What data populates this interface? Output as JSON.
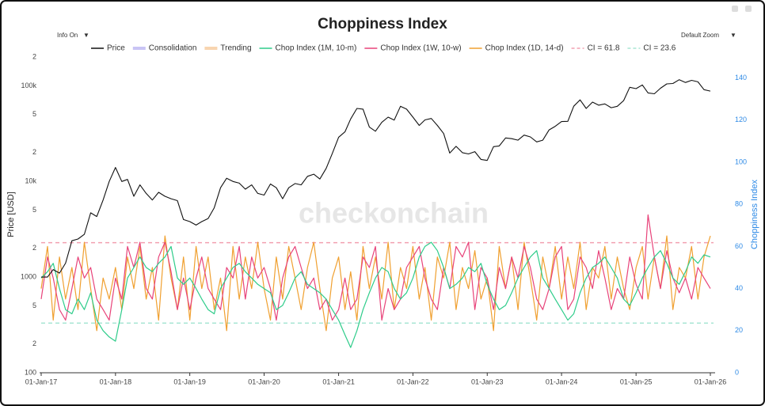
{
  "chart_data": {
    "type": "line",
    "title": "Choppiness Index",
    "controls": {
      "info": "Info On",
      "zoom": "Default Zoom"
    },
    "watermark": "checkonchain",
    "y_label": "Price [USD]",
    "y2_label": "Choppiness Index",
    "log_y": true,
    "ylim": [
      100,
      200000
    ],
    "yticks": [
      100,
      {
        "value": 200,
        "label": "2"
      },
      {
        "value": 500,
        "label": "5"
      },
      1000,
      {
        "value": 2000,
        "label": "2"
      },
      {
        "value": 5000,
        "label": "5"
      },
      {
        "value": 10000,
        "label": "10k"
      },
      {
        "value": 20000,
        "label": "2"
      },
      {
        "value": 50000,
        "label": "5"
      },
      {
        "value": 100000,
        "label": "100k"
      },
      {
        "value": 200000,
        "label": "2"
      }
    ],
    "y2lim": [
      0,
      150
    ],
    "y2ticks": [
      0,
      20,
      40,
      60,
      80,
      100,
      120,
      140
    ],
    "xlim": [
      "2017-01-01",
      "2026-01-01"
    ],
    "xticks": [
      {
        "value": "2017-01-01",
        "label": "01-Jan-17"
      },
      {
        "value": "2018-01-01",
        "label": "01-Jan-18"
      },
      {
        "value": "2019-01-01",
        "label": "01-Jan-19"
      },
      {
        "value": "2020-01-01",
        "label": "01-Jan-20"
      },
      {
        "value": "2021-01-01",
        "label": "01-Jan-21"
      },
      {
        "value": "2022-01-01",
        "label": "01-Jan-22"
      },
      {
        "value": "2023-01-01",
        "label": "01-Jan-23"
      },
      {
        "value": "2024-01-01",
        "label": "01-Jan-24"
      },
      {
        "value": "2025-01-01",
        "label": "01-Jan-25"
      },
      {
        "value": "2026-01-01",
        "label": "01-Jan-26"
      }
    ],
    "x": [
      "2017-01-01",
      "2017-02-01",
      "2017-03-01",
      "2017-04-01",
      "2017-05-01",
      "2017-06-01",
      "2017-07-01",
      "2017-08-01",
      "2017-09-01",
      "2017-10-01",
      "2017-11-01",
      "2017-12-01",
      "2018-01-01",
      "2018-02-01",
      "2018-03-01",
      "2018-04-01",
      "2018-05-01",
      "2018-06-01",
      "2018-07-01",
      "2018-08-01",
      "2018-09-01",
      "2018-10-01",
      "2018-11-01",
      "2018-12-01",
      "2019-01-01",
      "2019-02-01",
      "2019-03-01",
      "2019-04-01",
      "2019-05-01",
      "2019-06-01",
      "2019-07-01",
      "2019-08-01",
      "2019-09-01",
      "2019-10-01",
      "2019-11-01",
      "2019-12-01",
      "2020-01-01",
      "2020-02-01",
      "2020-03-01",
      "2020-04-01",
      "2020-05-01",
      "2020-06-01",
      "2020-07-01",
      "2020-08-01",
      "2020-09-01",
      "2020-10-01",
      "2020-11-01",
      "2020-12-01",
      "2021-01-01",
      "2021-02-01",
      "2021-03-01",
      "2021-04-01",
      "2021-05-01",
      "2021-06-01",
      "2021-07-01",
      "2021-08-01",
      "2021-09-01",
      "2021-10-01",
      "2021-11-01",
      "2021-12-01",
      "2022-01-01",
      "2022-02-01",
      "2022-03-01",
      "2022-04-01",
      "2022-05-01",
      "2022-06-01",
      "2022-07-01",
      "2022-08-01",
      "2022-09-01",
      "2022-10-01",
      "2022-11-01",
      "2022-12-01",
      "2023-01-01",
      "2023-02-01",
      "2023-03-01",
      "2023-04-01",
      "2023-05-01",
      "2023-06-01",
      "2023-07-01",
      "2023-08-01",
      "2023-09-01",
      "2023-10-01",
      "2023-11-01",
      "2023-12-01",
      "2024-01-01",
      "2024-02-01",
      "2024-03-01",
      "2024-04-01",
      "2024-05-01",
      "2024-06-01",
      "2024-07-01",
      "2024-08-01",
      "2024-09-01",
      "2024-10-01",
      "2024-11-01",
      "2024-12-01",
      "2025-01-01",
      "2025-02-01",
      "2025-03-01",
      "2025-04-01",
      "2025-05-01",
      "2025-06-01",
      "2025-07-01",
      "2025-08-01",
      "2025-09-01",
      "2025-10-01",
      "2025-11-01",
      "2025-12-01",
      "2026-01-01"
    ],
    "series": [
      {
        "name": "Price",
        "color": "#111111",
        "axis": "y",
        "values": [
          1000,
          1000,
          1200,
          1100,
          1400,
          2400,
          2500,
          2800,
          4700,
          4300,
          6400,
          10000,
          14000,
          10000,
          10500,
          7000,
          9200,
          7500,
          6400,
          7700,
          7000,
          6600,
          6300,
          4000,
          3800,
          3500,
          3800,
          4100,
          5300,
          8600,
          10800,
          10000,
          9600,
          8300,
          9200,
          7500,
          7200,
          9400,
          8600,
          6600,
          8600,
          9500,
          9200,
          11300,
          11900,
          10600,
          13700,
          19600,
          29000,
          33000,
          45000,
          58000,
          57000,
          37000,
          33500,
          41500,
          47000,
          43800,
          61000,
          57000,
          47000,
          38500,
          44000,
          45500,
          38500,
          31700,
          19800,
          23300,
          20000,
          19400,
          20500,
          17000,
          16600,
          23100,
          23500,
          28500,
          28000,
          27000,
          30500,
          29200,
          25900,
          27000,
          34600,
          37700,
          42300,
          42500,
          61100,
          71200,
          58000,
          67500,
          62700,
          64600,
          59000,
          61000,
          70000,
          96400,
          93400,
          102000,
          84300,
          82500,
          94200,
          104600,
          105700,
          115800,
          108200,
          114000,
          110000,
          91000,
          88000
        ]
      },
      {
        "name": "Chop Index (1M, 10-m)",
        "color": "#2ecc8a",
        "axis": "y2",
        "values": [
          45,
          48,
          52,
          40,
          30,
          28,
          35,
          30,
          38,
          25,
          20,
          17,
          15,
          30,
          45,
          50,
          55,
          50,
          48,
          52,
          55,
          60,
          45,
          42,
          45,
          40,
          35,
          30,
          28,
          40,
          45,
          50,
          52,
          48,
          45,
          42,
          40,
          38,
          30,
          32,
          38,
          45,
          48,
          42,
          40,
          38,
          35,
          30,
          25,
          18,
          12,
          20,
          30,
          38,
          45,
          50,
          48,
          40,
          35,
          38,
          45,
          55,
          60,
          62,
          58,
          50,
          40,
          42,
          45,
          50,
          48,
          52,
          42,
          35,
          30,
          32,
          38,
          45,
          50,
          55,
          58,
          45,
          40,
          35,
          30,
          25,
          28,
          38,
          45,
          50,
          52,
          55,
          50,
          45,
          35,
          32,
          38,
          45,
          50,
          55,
          58,
          52,
          45,
          42,
          48,
          55,
          52,
          56,
          55
        ]
      },
      {
        "name": "Chop Index (1W, 10-w)",
        "color": "#e8437a",
        "axis": "y2",
        "values": [
          35,
          55,
          45,
          30,
          25,
          40,
          55,
          45,
          50,
          35,
          30,
          25,
          45,
          35,
          60,
          50,
          62,
          40,
          35,
          55,
          62,
          48,
          30,
          45,
          30,
          45,
          55,
          40,
          35,
          30,
          50,
          45,
          60,
          35,
          55,
          45,
          50,
          40,
          25,
          45,
          55,
          60,
          50,
          40,
          45,
          30,
          35,
          25,
          30,
          45,
          30,
          35,
          55,
          50,
          60,
          25,
          40,
          30,
          35,
          50,
          55,
          60,
          45,
          35,
          30,
          50,
          40,
          60,
          55,
          62,
          30,
          50,
          45,
          30,
          50,
          40,
          55,
          45,
          60,
          50,
          35,
          30,
          40,
          55,
          60,
          30,
          35,
          55,
          50,
          40,
          58,
          45,
          30,
          40,
          35,
          55,
          42,
          35,
          75,
          55,
          40,
          58,
          45,
          38,
          45,
          35,
          50,
          45,
          40
        ]
      },
      {
        "name": "Chop Index (1D, 14-d)",
        "color": "#f0a030",
        "axis": "y2",
        "values": [
          40,
          60,
          25,
          55,
          35,
          50,
          30,
          62,
          40,
          20,
          45,
          35,
          50,
          30,
          55,
          40,
          60,
          35,
          50,
          25,
          65,
          45,
          30,
          55,
          25,
          60,
          40,
          55,
          30,
          45,
          20,
          60,
          35,
          55,
          40,
          62,
          40,
          25,
          55,
          35,
          60,
          45,
          30,
          50,
          62,
          40,
          20,
          45,
          55,
          30,
          48,
          25,
          60,
          40,
          55,
          35,
          62,
          30,
          50,
          40,
          60,
          35,
          50,
          25,
          55,
          45,
          62,
          30,
          50,
          40,
          58,
          35,
          45,
          20,
          60,
          40,
          55,
          30,
          62,
          45,
          25,
          55,
          40,
          60,
          35,
          55,
          40,
          62,
          30,
          50,
          45,
          60,
          35,
          55,
          40,
          30,
          50,
          60,
          35,
          55,
          40,
          65,
          30,
          50,
          45,
          60,
          35,
          55,
          65
        ]
      }
    ],
    "hidden_series": [
      {
        "name": "Consolidation",
        "color": "#c9c4f5"
      },
      {
        "name": "Trending",
        "color": "#f8d5b0"
      }
    ],
    "reference_lines": [
      {
        "name": "CI = 61.8",
        "value": 61.8,
        "color": "#f2a0b0"
      },
      {
        "name": "CI = 23.6",
        "value": 23.6,
        "color": "#a8e6d4"
      }
    ]
  }
}
